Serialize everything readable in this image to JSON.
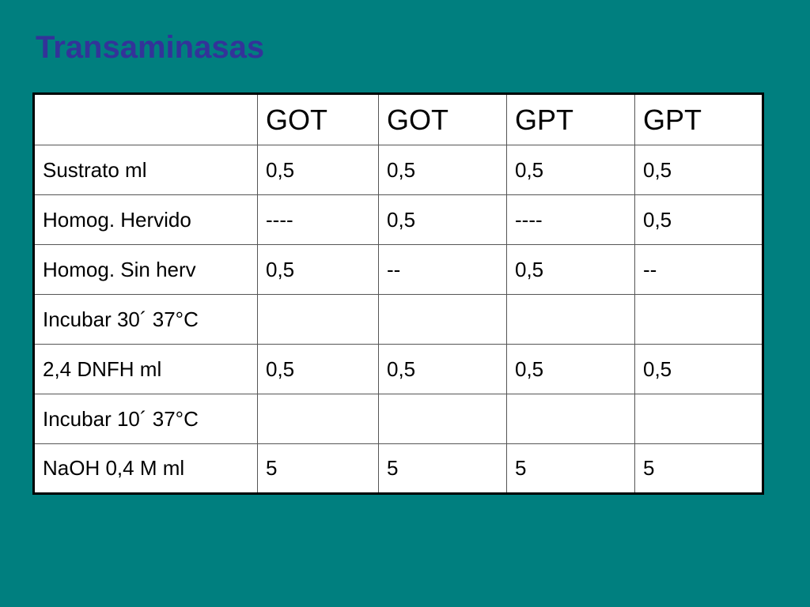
{
  "slide": {
    "title": "Transaminasas",
    "colors": {
      "background": "#007f7f",
      "title": "#333399",
      "table_background": "#ffffff",
      "border": "#000000",
      "text": "#000000"
    }
  },
  "table": {
    "headers": [
      "",
      "GOT",
      "GOT",
      "GPT",
      "GPT"
    ],
    "rows": [
      [
        "Sustrato ml",
        "0,5",
        "0,5",
        "0,5",
        "0,5"
      ],
      [
        "Homog. Hervido",
        "----",
        "0,5",
        "----",
        "0,5"
      ],
      [
        "Homog. Sin herv",
        "0,5",
        "--",
        "0,5",
        "--"
      ],
      [
        "Incubar 30´ 37°C",
        "",
        "",
        "",
        ""
      ],
      [
        "2,4 DNFH ml",
        "0,5",
        "0,5",
        "0,5",
        "0,5"
      ],
      [
        "Incubar 10´ 37°C",
        "",
        "",
        "",
        ""
      ],
      [
        "NaOH 0,4 M ml",
        "5",
        "5",
        "5",
        "5"
      ]
    ]
  }
}
